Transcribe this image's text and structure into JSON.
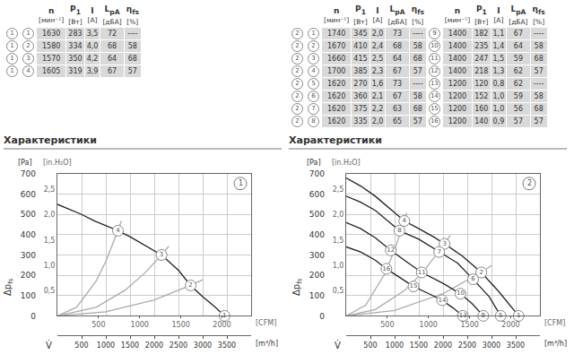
{
  "tables": [
    {
      "header": [
        {
          "symbol": "n",
          "unit": "[мин⁻¹]"
        },
        {
          "symbol": "P",
          "sub": "1",
          "unit": "[Вт]"
        },
        {
          "symbol": "I",
          "unit": "[A]"
        },
        {
          "symbol": "L",
          "sub": "pA",
          "unit": "[дБА]"
        },
        {
          "symbol": "η",
          "sub": "fs",
          "unit": "[%]"
        }
      ],
      "groups": [
        {
          "rows": [
            {
              "curve": "1",
              "point": "1",
              "cells": [
                "1630",
                "283",
                "3,5",
                "72",
                "----"
              ]
            },
            {
              "curve": "1",
              "point": "2",
              "cells": [
                "1580",
                "334",
                "4,0",
                "68",
                "58"
              ]
            },
            {
              "curve": "1",
              "point": "3",
              "cells": [
                "1570",
                "350",
                "4,2",
                "64",
                "68"
              ]
            },
            {
              "curve": "1",
              "point": "4",
              "cells": [
                "1605",
                "319",
                "3,9",
                "67",
                "57"
              ]
            }
          ]
        }
      ]
    },
    {
      "header": [
        {
          "symbol": "n",
          "unit": "[мин⁻¹]"
        },
        {
          "symbol": "P",
          "sub": "1",
          "unit": "[Вт]"
        },
        {
          "symbol": "I",
          "unit": "[A]"
        },
        {
          "symbol": "L",
          "sub": "pA",
          "unit": "[дБА]"
        },
        {
          "symbol": "η",
          "sub": "fs",
          "unit": "[%]"
        }
      ],
      "groups": [
        {
          "rows": [
            {
              "curve": "2",
              "point": "1",
              "cells": [
                "1740",
                "345",
                "2,0",
                "73",
                "----"
              ]
            },
            {
              "curve": "2",
              "point": "2",
              "cells": [
                "1670",
                "410",
                "2,4",
                "68",
                "58"
              ]
            },
            {
              "curve": "2",
              "point": "3",
              "cells": [
                "1660",
                "415",
                "2,5",
                "64",
                "68"
              ]
            },
            {
              "curve": "2",
              "point": "4",
              "cells": [
                "1700",
                "385",
                "2,3",
                "67",
                "57"
              ]
            },
            {
              "curve": "2",
              "point": "5",
              "cells": [
                "1620",
                "270",
                "1,6",
                "73",
                "----"
              ]
            },
            {
              "curve": "2",
              "point": "6",
              "cells": [
                "1620",
                "360",
                "2,1",
                "67",
                "58"
              ]
            },
            {
              "curve": "2",
              "point": "7",
              "cells": [
                "1620",
                "375",
                "2,2",
                "63",
                "68"
              ]
            },
            {
              "curve": "2",
              "point": "8",
              "cells": [
                "1620",
                "335",
                "2,0",
                "65",
                "57"
              ]
            }
          ]
        },
        {
          "rows": [
            {
              "point": "9",
              "cells": [
                "1400",
                "182",
                "1,1",
                "67",
                "----"
              ]
            },
            {
              "point": "10",
              "cells": [
                "1400",
                "235",
                "1,4",
                "64",
                "58"
              ]
            },
            {
              "point": "11",
              "cells": [
                "1400",
                "247",
                "1,5",
                "59",
                "68"
              ]
            },
            {
              "point": "12",
              "cells": [
                "1400",
                "218",
                "1,3",
                "62",
                "57"
              ]
            },
            {
              "point": "13",
              "cells": [
                "1200",
                "120",
                "0,8",
                "62",
                "----"
              ]
            },
            {
              "point": "14",
              "cells": [
                "1200",
                "152",
                "1,0",
                "59",
                "58"
              ]
            },
            {
              "point": "15",
              "cells": [
                "1200",
                "160",
                "1,0",
                "56",
                "68"
              ]
            },
            {
              "point": "16",
              "cells": [
                "1200",
                "140",
                "0,9",
                "57",
                "57"
              ]
            }
          ]
        }
      ]
    }
  ],
  "headings": [
    "Характеристики",
    "Характеристики"
  ],
  "chart_data": [
    {
      "type": "line",
      "label": "1",
      "grid": true,
      "marker": "circle",
      "x_label": "V̇",
      "x_unit": "[m³/h]",
      "x2_unit": "[CFM]",
      "y_label": "Δp",
      "y_label_sub": "fs",
      "y_unit": "[Pa]",
      "y2_unit": "[in.H₂O]",
      "xlim": [
        0,
        4000
      ],
      "xticks": [
        500,
        1000,
        1500,
        2000,
        2500,
        3000,
        3500
      ],
      "x2lim": [
        0,
        2354
      ],
      "x2ticks": [
        500,
        1000,
        1500,
        2000
      ],
      "ylim": [
        0,
        700
      ],
      "yticks": [
        0,
        100,
        200,
        300,
        400,
        500,
        600,
        700
      ],
      "y2lim": [
        0,
        2.81
      ],
      "y2ticks": [
        {
          "value": 0.5,
          "label": "0,5"
        },
        {
          "value": 1,
          "label": "1,0"
        },
        {
          "value": 1.5,
          "label": "1,5"
        },
        {
          "value": 2,
          "label": "2,0"
        },
        {
          "value": 2.5,
          "label": "2,5"
        }
      ],
      "series": [
        {
          "color": "#aaaaaa",
          "x": [
            0,
            400,
            800,
            1000,
            1250,
            1320
          ],
          "values": [
            0,
            43,
            172,
            269,
            420,
            468
          ]
        },
        {
          "color": "#aaaaaa",
          "x": [
            0,
            800,
            1400,
            1800,
            2150,
            2300
          ],
          "values": [
            0,
            42,
            127,
            210,
            300,
            343
          ]
        },
        {
          "color": "#aaaaaa",
          "x": [
            0,
            1000,
            2000,
            2750,
            3000
          ],
          "values": [
            0,
            20,
            79,
            150,
            178
          ]
        },
        {
          "color": "#222222",
          "x": [
            0,
            250,
            500,
            750,
            1000,
            1250,
            1500,
            1750,
            2000,
            2150,
            2500,
            2750,
            3000,
            3250,
            3450
          ],
          "values": [
            550,
            525,
            500,
            470,
            445,
            420,
            390,
            355,
            320,
            300,
            225,
            150,
            95,
            45,
            0
          ]
        }
      ],
      "points": [
        {
          "label": "1",
          "x": 3450,
          "y": 0
        },
        {
          "label": "2",
          "x": 2750,
          "y": 150
        },
        {
          "label": "3",
          "x": 2150,
          "y": 300
        },
        {
          "label": "4",
          "x": 1250,
          "y": 420
        }
      ]
    },
    {
      "type": "line",
      "label": "2",
      "grid": true,
      "marker": "circle",
      "x_label": "V̇",
      "x_unit": "[m³/h]",
      "x2_unit": "[CFM]",
      "y_label": "Δp",
      "y_label_sub": "fs",
      "y_unit": "[Pa]",
      "y2_unit": "[in.H₂O]",
      "xlim": [
        0,
        4000
      ],
      "xticks": [
        500,
        1000,
        1500,
        2000,
        2500,
        3000,
        3500
      ],
      "x2lim": [
        0,
        2354
      ],
      "x2ticks": [
        500,
        1000,
        1500,
        2000
      ],
      "ylim": [
        0,
        700
      ],
      "yticks": [
        0,
        100,
        200,
        300,
        400,
        500,
        600,
        700
      ],
      "y2lim": [
        0,
        2.81
      ],
      "y2ticks": [
        {
          "value": 0.5,
          "label": "0,5"
        },
        {
          "value": 1,
          "label": "1,0"
        },
        {
          "value": 1.5,
          "label": "1,5"
        },
        {
          "value": 2,
          "label": "2,0"
        },
        {
          "value": 2.5,
          "label": "2,5"
        }
      ],
      "series": [
        {
          "color": "#aaaaaa",
          "x": [
            0,
            400,
            800,
            1000,
            1200,
            1250
          ],
          "values": [
            0,
            52,
            208,
            325,
            468,
            508
          ]
        },
        {
          "color": "#aaaaaa",
          "x": [
            0,
            600,
            1200,
            1600,
            2030,
            2150
          ],
          "values": [
            0,
            31,
            124,
            220,
            355,
            398
          ]
        },
        {
          "color": "#aaaaaa",
          "x": [
            0,
            1000,
            2000,
            2790,
            3000
          ],
          "values": [
            0,
            27,
            110,
            214,
            248
          ]
        },
        {
          "color": "#222222",
          "x": [
            0,
            300,
            600,
            900,
            1200,
            1500,
            1800,
            2030,
            2400,
            2790,
            3150,
            3560
          ],
          "values": [
            680,
            640,
            590,
            530,
            468,
            430,
            390,
            355,
            295,
            214,
            120,
            0
          ]
        },
        {
          "color": "#222222",
          "x": [
            0,
            300,
            600,
            900,
            1100,
            1500,
            1920,
            2300,
            2620,
            2950,
            3190
          ],
          "values": [
            590,
            560,
            520,
            460,
            420,
            378,
            315,
            260,
            180,
            95,
            0
          ]
        },
        {
          "color": "#222222",
          "x": [
            0,
            300,
            600,
            920,
            1200,
            1560,
            2000,
            2360,
            2600,
            2830
          ],
          "values": [
            460,
            430,
            385,
            323,
            275,
            214,
            160,
            109,
            60,
            0
          ]
        },
        {
          "color": "#222222",
          "x": [
            0,
            300,
            600,
            830,
            1100,
            1390,
            1700,
            1980,
            2200,
            2410
          ],
          "values": [
            340,
            315,
            275,
            232,
            190,
            145,
            110,
            77,
            40,
            0
          ]
        }
      ],
      "points": [
        {
          "label": "1",
          "x": 3560,
          "y": 0
        },
        {
          "label": "2",
          "x": 2790,
          "y": 214
        },
        {
          "label": "3",
          "x": 2030,
          "y": 355
        },
        {
          "label": "4",
          "x": 1200,
          "y": 468
        },
        {
          "label": "5",
          "x": 3190,
          "y": 0
        },
        {
          "label": "6",
          "x": 2620,
          "y": 180
        },
        {
          "label": "7",
          "x": 1920,
          "y": 315
        },
        {
          "label": "8",
          "x": 1100,
          "y": 420
        },
        {
          "label": "9",
          "x": 2830,
          "y": 0
        },
        {
          "label": "10",
          "x": 2360,
          "y": 109
        },
        {
          "label": "11",
          "x": 1560,
          "y": 214
        },
        {
          "label": "12",
          "x": 920,
          "y": 323
        },
        {
          "label": "13",
          "x": 2410,
          "y": 0
        },
        {
          "label": "14",
          "x": 1980,
          "y": 77
        },
        {
          "label": "15",
          "x": 1390,
          "y": 145
        },
        {
          "label": "16",
          "x": 830,
          "y": 232
        }
      ]
    }
  ]
}
